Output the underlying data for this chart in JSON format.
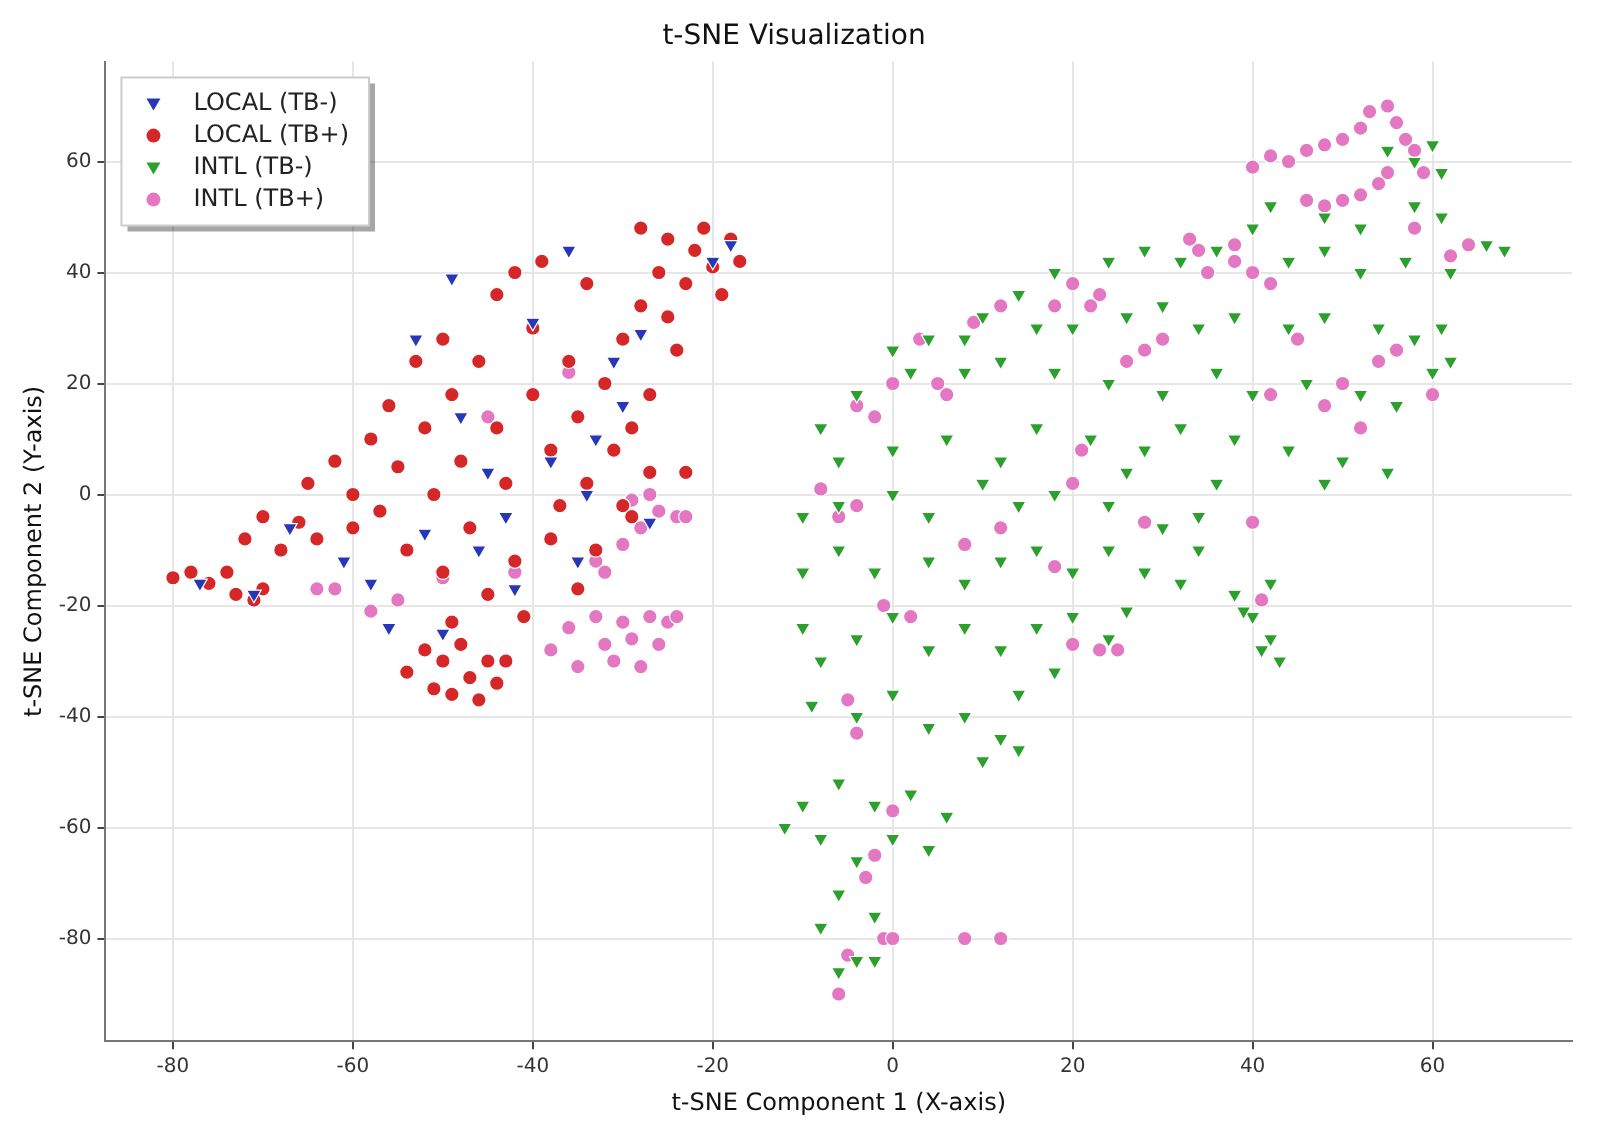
{
  "chart_data": {
    "type": "scatter",
    "title": "t-SNE Visualization",
    "xlabel": "t-SNE Component 1 (X-axis)",
    "ylabel": "t-SNE Component 2 (Y-axis)",
    "xlim": [
      -87.5,
      75.5
    ],
    "ylim": [
      -98.5,
      78
    ],
    "xticks": [
      -80,
      -60,
      -40,
      -20,
      0,
      20,
      40,
      60
    ],
    "yticks": [
      -80,
      -60,
      -40,
      -20,
      0,
      20,
      40,
      60
    ],
    "grid": true,
    "legend": "top left",
    "series": [
      {
        "name": "LOCAL (TB-)",
        "color": "#2836b8",
        "marker": "triangle",
        "x": [
          -77,
          -71,
          -67,
          -61,
          -58,
          -56,
          -53,
          -52,
          -50,
          -49,
          -48,
          -46,
          -45,
          -43,
          -42,
          -40,
          -38,
          -36,
          -35,
          -34,
          -33,
          -31,
          -30,
          -28,
          -27,
          -20,
          -18
        ],
        "values": [
          -16,
          -18,
          -6,
          -12,
          -16,
          -24,
          28,
          -7,
          -25,
          39,
          14,
          -10,
          4,
          -4,
          -17,
          31,
          6,
          44,
          -12,
          0,
          10,
          24,
          16,
          29,
          -5,
          42,
          45
        ]
      },
      {
        "name": "LOCAL (TB+)",
        "color": "#d62728",
        "marker": "circle",
        "x": [
          -80,
          -78,
          -76,
          -73,
          -71,
          -70,
          -74,
          -72,
          -70,
          -68,
          -66,
          -65,
          -64,
          -62,
          -60,
          -60,
          -58,
          -57,
          -56,
          -55,
          -54,
          -53,
          -52,
          -51,
          -50,
          -50,
          -49,
          -48,
          -47,
          -46,
          -45,
          -44,
          -44,
          -43,
          -42,
          -42,
          -41,
          -40,
          -40,
          -39,
          -38,
          -38,
          -37,
          -36,
          -35,
          -34,
          -34,
          -33,
          -32,
          -31,
          -30,
          -30,
          -29,
          -28,
          -27,
          -27,
          -26,
          -25,
          -24,
          -23,
          -22,
          -21,
          -20,
          -19,
          -18,
          -17,
          -25,
          -28,
          -29,
          -35,
          -23,
          -54,
          -52,
          -51,
          -50,
          -49,
          -48,
          -47,
          -46,
          -45,
          -44,
          -43,
          -49
        ],
        "values": [
          -15,
          -14,
          -16,
          -18,
          -19,
          -17,
          -14,
          -8,
          -4,
          -10,
          -5,
          2,
          -8,
          6,
          0,
          -6,
          10,
          -3,
          16,
          5,
          -10,
          24,
          12,
          0,
          -14,
          28,
          18,
          6,
          -6,
          24,
          -18,
          36,
          12,
          2,
          40,
          -12,
          -22,
          30,
          18,
          42,
          8,
          -8,
          -2,
          24,
          14,
          38,
          2,
          -10,
          20,
          8,
          28,
          -2,
          12,
          34,
          18,
          4,
          40,
          46,
          26,
          38,
          44,
          48,
          41,
          36,
          46,
          42,
          32,
          48,
          -4,
          -17,
          4,
          -32,
          -28,
          -35,
          -30,
          -36,
          -27,
          -33,
          -37,
          -30,
          -34,
          -30,
          -23
        ]
      },
      {
        "name": "INTL (TB-)",
        "color": "#2ca02c",
        "marker": "triangle",
        "x": [
          55,
          58,
          60,
          61,
          42,
          48,
          52,
          58,
          61,
          40,
          10,
          14,
          18,
          24,
          28,
          32,
          36,
          44,
          48,
          52,
          57,
          62,
          66,
          68,
          0,
          4,
          8,
          16,
          20,
          26,
          30,
          34,
          38,
          44,
          48,
          54,
          58,
          61,
          -4,
          2,
          8,
          12,
          18,
          24,
          30,
          36,
          40,
          46,
          52,
          56,
          60,
          62,
          -8,
          -6,
          0,
          6,
          12,
          16,
          22,
          28,
          32,
          38,
          44,
          50,
          55,
          48,
          -10,
          -6,
          0,
          4,
          10,
          14,
          18,
          24,
          30,
          34,
          36,
          26,
          -10,
          -6,
          -2,
          4,
          8,
          12,
          16,
          20,
          24,
          28,
          32,
          34,
          -10,
          -8,
          -4,
          0,
          4,
          8,
          12,
          16,
          20,
          24,
          26,
          18,
          14,
          38,
          40,
          42,
          43,
          41,
          42,
          39,
          -9,
          -4,
          0,
          4,
          8,
          12,
          14,
          10,
          -10,
          -6,
          -2,
          2,
          6,
          -8,
          -12,
          -4,
          0,
          4,
          -6,
          -2,
          -8,
          -4,
          -6,
          -2
        ],
        "values": [
          62,
          60,
          63,
          58,
          52,
          50,
          48,
          52,
          50,
          48,
          32,
          36,
          40,
          42,
          44,
          42,
          44,
          42,
          44,
          40,
          42,
          40,
          45,
          44,
          26,
          28,
          28,
          30,
          30,
          32,
          34,
          30,
          32,
          30,
          32,
          30,
          28,
          30,
          18,
          22,
          22,
          24,
          22,
          20,
          18,
          22,
          18,
          20,
          18,
          16,
          22,
          24,
          12,
          6,
          8,
          10,
          6,
          12,
          10,
          8,
          12,
          10,
          8,
          6,
          4,
          2,
          -4,
          -2,
          0,
          -4,
          2,
          -2,
          0,
          -2,
          -6,
          -4,
          2,
          4,
          -14,
          -10,
          -14,
          -12,
          -16,
          -12,
          -10,
          -14,
          -10,
          -14,
          -16,
          -10,
          -24,
          -30,
          -26,
          -22,
          -28,
          -24,
          -28,
          -24,
          -22,
          -26,
          -21,
          -32,
          -36,
          -18,
          -22,
          -26,
          -30,
          -28,
          -16,
          -21,
          -38,
          -40,
          -36,
          -42,
          -40,
          -44,
          -46,
          -48,
          -56,
          -52,
          -56,
          -54,
          -58,
          -62,
          -60,
          -66,
          -62,
          -64,
          -72,
          -76,
          -78,
          -84,
          -86,
          -84
        ]
      },
      {
        "name": "INTL (TB+)",
        "color": "#e377c2",
        "marker": "circle",
        "x": [
          -38,
          -36,
          -35,
          -33,
          -32,
          -31,
          -30,
          -29,
          -28,
          -27,
          -26,
          -25,
          -24,
          -33,
          -30,
          -28,
          -26,
          -24,
          -23,
          -27,
          -29,
          -32,
          -55,
          -58,
          -64,
          -62,
          -50,
          -45,
          -42,
          -36,
          40,
          42,
          44,
          46,
          48,
          50,
          52,
          53,
          55,
          56,
          57,
          58,
          59,
          55,
          46,
          48,
          50,
          52,
          54,
          58,
          64,
          62,
          42,
          40,
          38,
          34,
          33,
          35,
          38,
          23,
          22,
          20,
          18,
          28,
          26,
          30,
          9,
          12,
          6,
          5,
          3,
          0,
          -2,
          -4,
          -8,
          -4,
          -6,
          -1,
          2,
          8,
          12,
          18,
          20,
          23,
          25,
          -5,
          -4,
          0,
          -2,
          -3,
          -5,
          -1,
          0,
          -6,
          8,
          12,
          20,
          21,
          28,
          40,
          42,
          48,
          50,
          52,
          54,
          45,
          56,
          60,
          41
        ],
        "values": [
          -28,
          -24,
          -31,
          -22,
          -27,
          -30,
          -23,
          -26,
          -31,
          -22,
          -27,
          -23,
          -22,
          -12,
          -9,
          -6,
          -3,
          -4,
          -4,
          0,
          -1,
          -14,
          -19,
          -21,
          -17,
          -17,
          -15,
          14,
          -14,
          22,
          59,
          61,
          60,
          62,
          63,
          64,
          66,
          69,
          70,
          67,
          64,
          62,
          58,
          58,
          53,
          52,
          53,
          54,
          56,
          48,
          45,
          43,
          38,
          40,
          42,
          44,
          46,
          40,
          45,
          36,
          34,
          38,
          34,
          26,
          24,
          28,
          31,
          34,
          18,
          20,
          28,
          20,
          14,
          16,
          1,
          -2,
          -4,
          -20,
          -22,
          -9,
          -6,
          -13,
          -27,
          -28,
          -28,
          -37,
          -43,
          -57,
          -65,
          -69,
          -83,
          -80,
          -80,
          -90,
          -80,
          -80,
          2,
          8,
          -5,
          -5,
          18,
          16,
          20,
          12,
          24,
          28,
          26,
          18,
          -19
        ]
      }
    ]
  }
}
